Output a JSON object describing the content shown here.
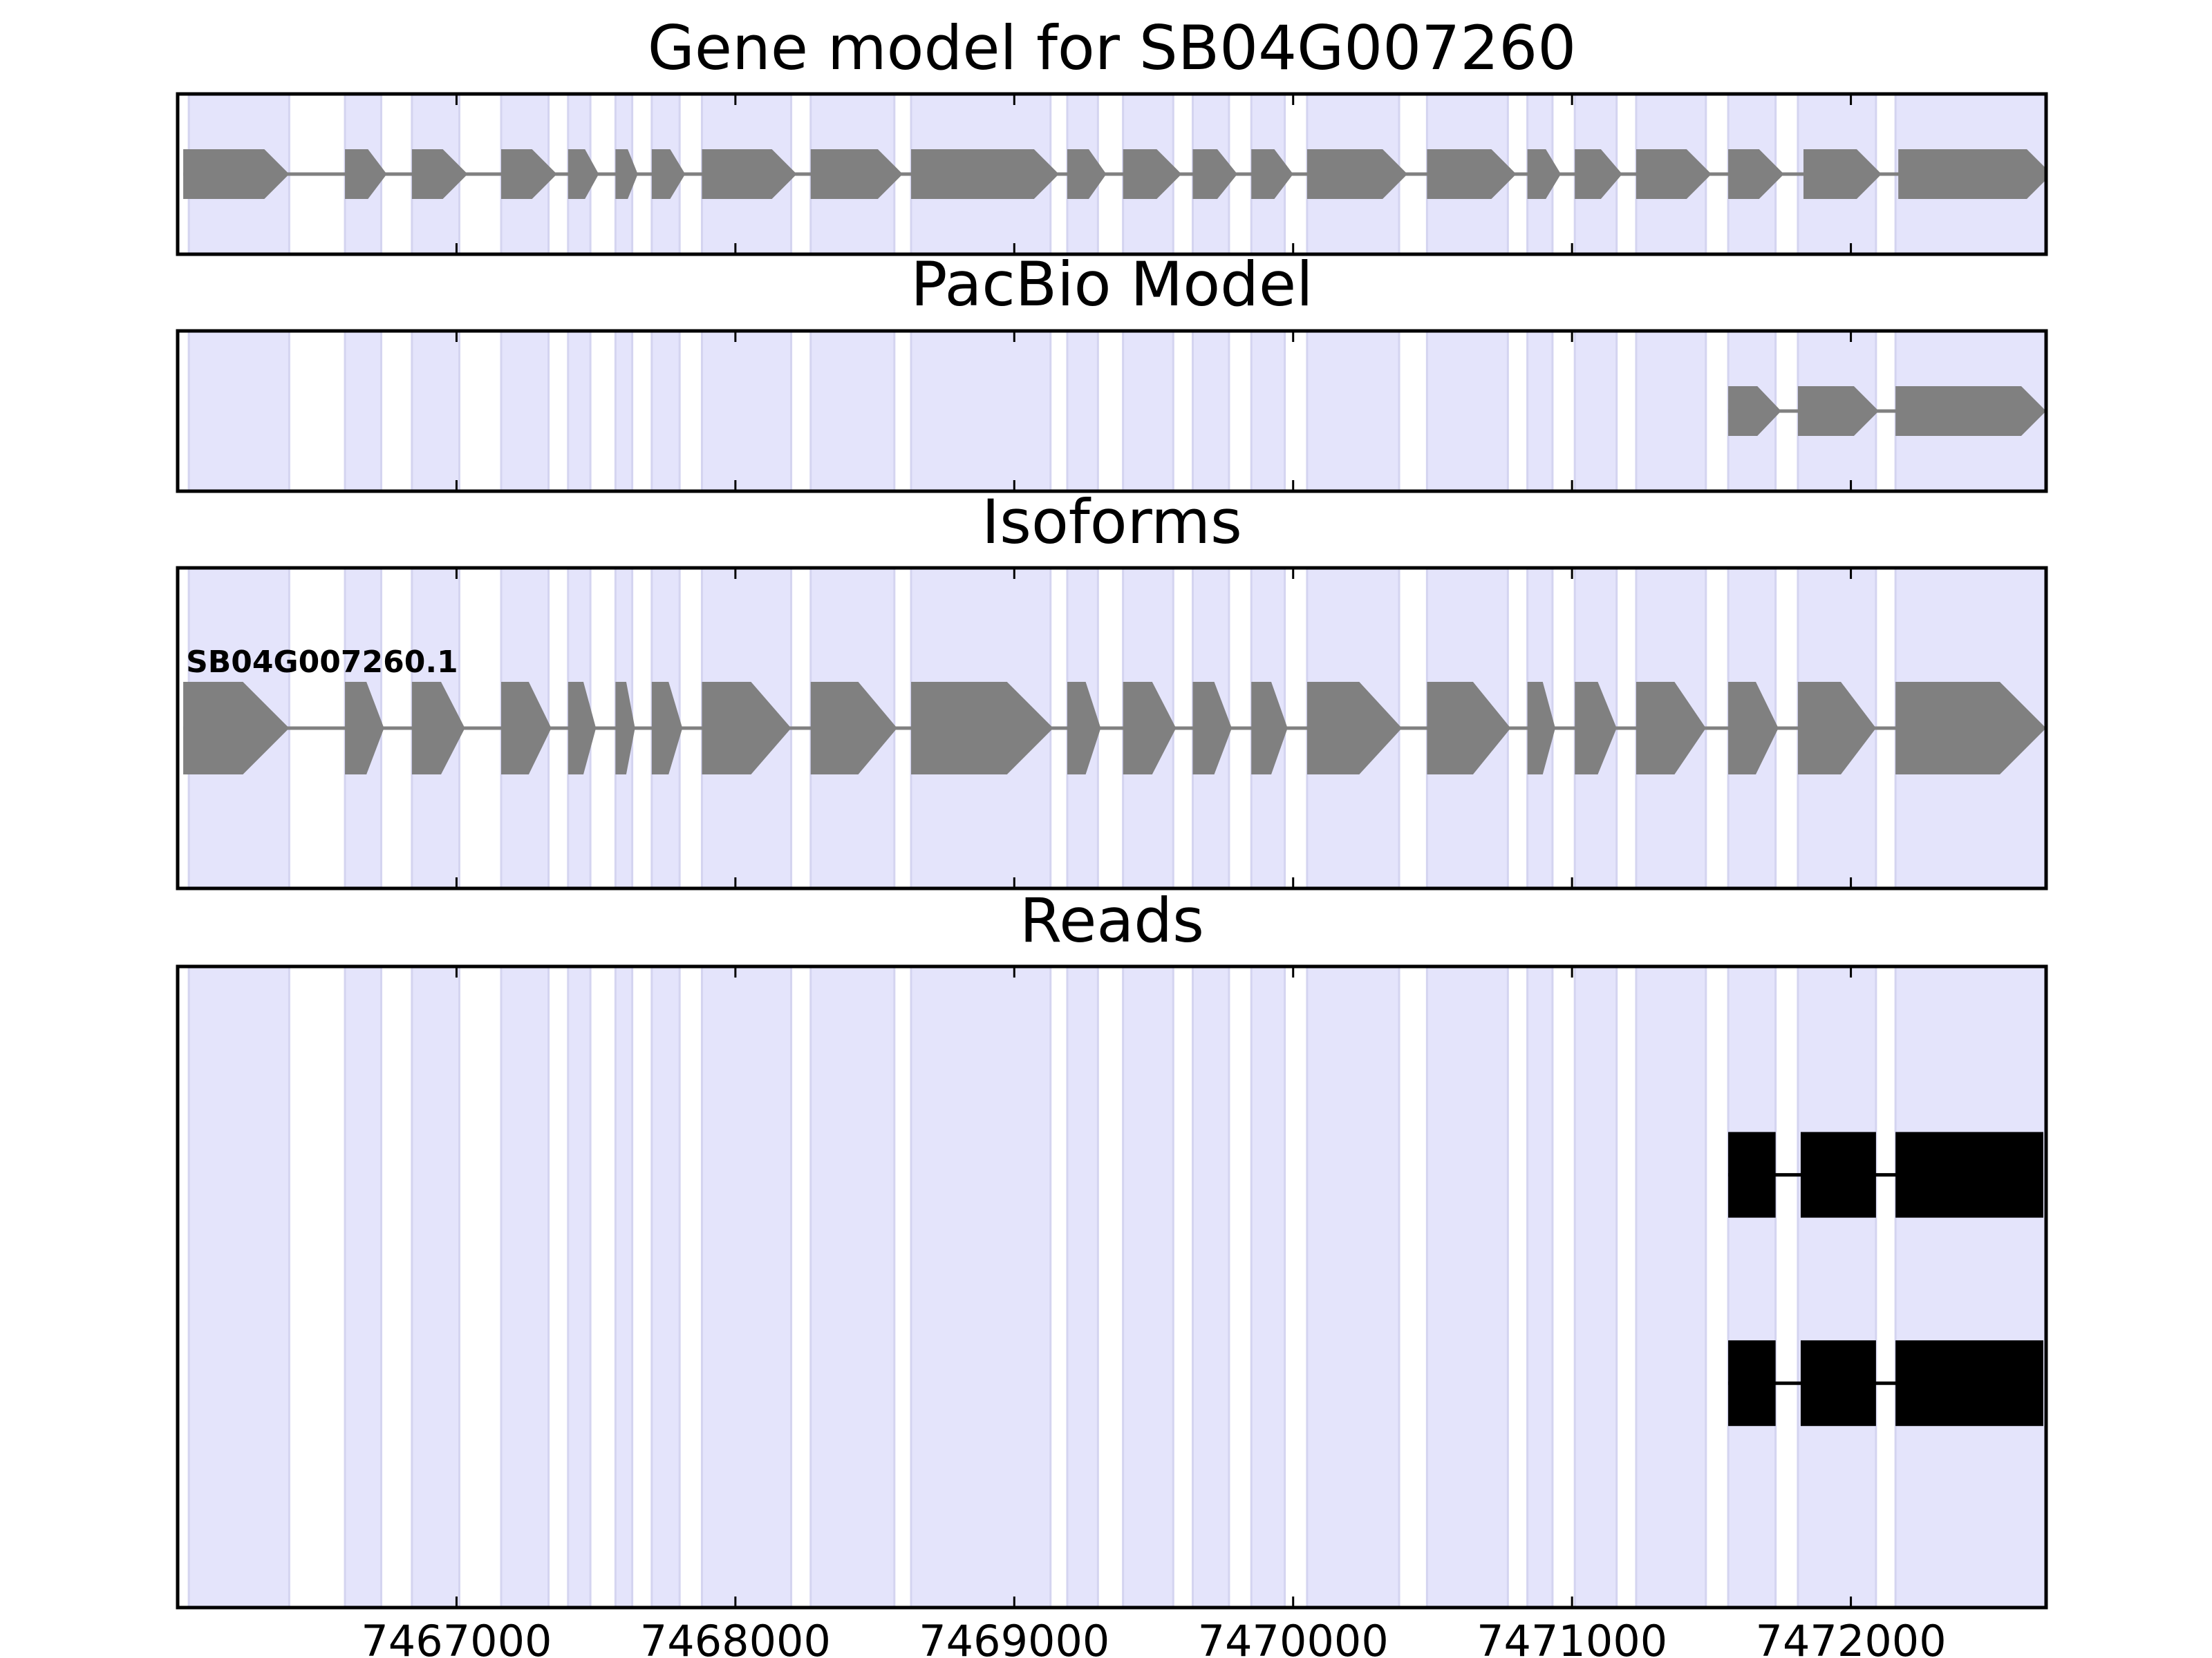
{
  "figure_title": "Gene model for SB04G007260",
  "chart_data": {
    "type": "gene-track",
    "xlim": [
      7466000,
      7472700
    ],
    "xticks": [
      7467000,
      7468000,
      7469000,
      7470000,
      7471000,
      7472000
    ],
    "shading_color": "#e4e4fb",
    "exon_color": "#808080",
    "read_color": "#000000",
    "exon_regions": [
      [
        7466040,
        7466400
      ],
      [
        7466600,
        7466730
      ],
      [
        7466840,
        7467010
      ],
      [
        7467160,
        7467330
      ],
      [
        7467400,
        7467480
      ],
      [
        7467570,
        7467630
      ],
      [
        7467700,
        7467800
      ],
      [
        7467880,
        7468200
      ],
      [
        7468270,
        7468570
      ],
      [
        7468630,
        7469130
      ],
      [
        7469190,
        7469300
      ],
      [
        7469390,
        7469570
      ],
      [
        7469640,
        7469770
      ],
      [
        7469850,
        7469970
      ],
      [
        7470050,
        7470380
      ],
      [
        7470480,
        7470770
      ],
      [
        7470840,
        7470930
      ],
      [
        7471010,
        7471160
      ],
      [
        7471230,
        7471480
      ],
      [
        7471560,
        7471730
      ],
      [
        7471810,
        7472090
      ],
      [
        7472160,
        7472700
      ]
    ],
    "panels": [
      {
        "title": "Gene model for SB04G007260",
        "kind": "gene",
        "features": [
          {
            "label": "",
            "exons": [
              [
                7466020,
                7466400
              ],
              [
                7466600,
                7466750
              ],
              [
                7466840,
                7467040
              ],
              [
                7467160,
                7467360
              ],
              [
                7467400,
                7467510
              ],
              [
                7467570,
                7467650
              ],
              [
                7467700,
                7467820
              ],
              [
                7467880,
                7468220
              ],
              [
                7468270,
                7468600
              ],
              [
                7468630,
                7469160
              ],
              [
                7469190,
                7469330
              ],
              [
                7469390,
                7469600
              ],
              [
                7469640,
                7469800
              ],
              [
                7469850,
                7470000
              ],
              [
                7470050,
                7470410
              ],
              [
                7470480,
                7470800
              ],
              [
                7470840,
                7470960
              ],
              [
                7471010,
                7471180
              ],
              [
                7471230,
                7471500
              ],
              [
                7471560,
                7471760
              ],
              [
                7471830,
                7472110
              ],
              [
                7472170,
                7472720
              ]
            ]
          }
        ]
      },
      {
        "title": "PacBio Model",
        "kind": "gene",
        "features": [
          {
            "label": "",
            "exons": [
              [
                7471560,
                7471750
              ],
              [
                7471810,
                7472100
              ],
              [
                7472160,
                7472700
              ]
            ]
          }
        ]
      },
      {
        "title": "Isoforms",
        "kind": "gene",
        "features": [
          {
            "label": "SB04G007260.1",
            "exons": [
              [
                7466020,
                7466400
              ],
              [
                7466600,
                7466740
              ],
              [
                7466840,
                7467030
              ],
              [
                7467160,
                7467340
              ],
              [
                7467400,
                7467500
              ],
              [
                7467570,
                7467640
              ],
              [
                7467700,
                7467810
              ],
              [
                7467880,
                7468200
              ],
              [
                7468270,
                7468580
              ],
              [
                7468630,
                7469140
              ],
              [
                7469190,
                7469310
              ],
              [
                7469390,
                7469580
              ],
              [
                7469640,
                7469780
              ],
              [
                7469850,
                7469980
              ],
              [
                7470050,
                7470390
              ],
              [
                7470480,
                7470780
              ],
              [
                7470840,
                7470940
              ],
              [
                7471010,
                7471160
              ],
              [
                7471230,
                7471480
              ],
              [
                7471560,
                7471740
              ],
              [
                7471810,
                7472090
              ],
              [
                7472160,
                7472700
              ]
            ]
          }
        ]
      },
      {
        "title": "Reads",
        "kind": "reads",
        "features": [
          {
            "label": "",
            "exons": [
              [
                7471560,
                7471730
              ],
              [
                7471820,
                7472090
              ],
              [
                7472160,
                7472690
              ]
            ]
          },
          {
            "label": "",
            "exons": [
              [
                7471560,
                7471730
              ],
              [
                7471820,
                7472090
              ],
              [
                7472160,
                7472690
              ]
            ]
          }
        ]
      }
    ]
  }
}
